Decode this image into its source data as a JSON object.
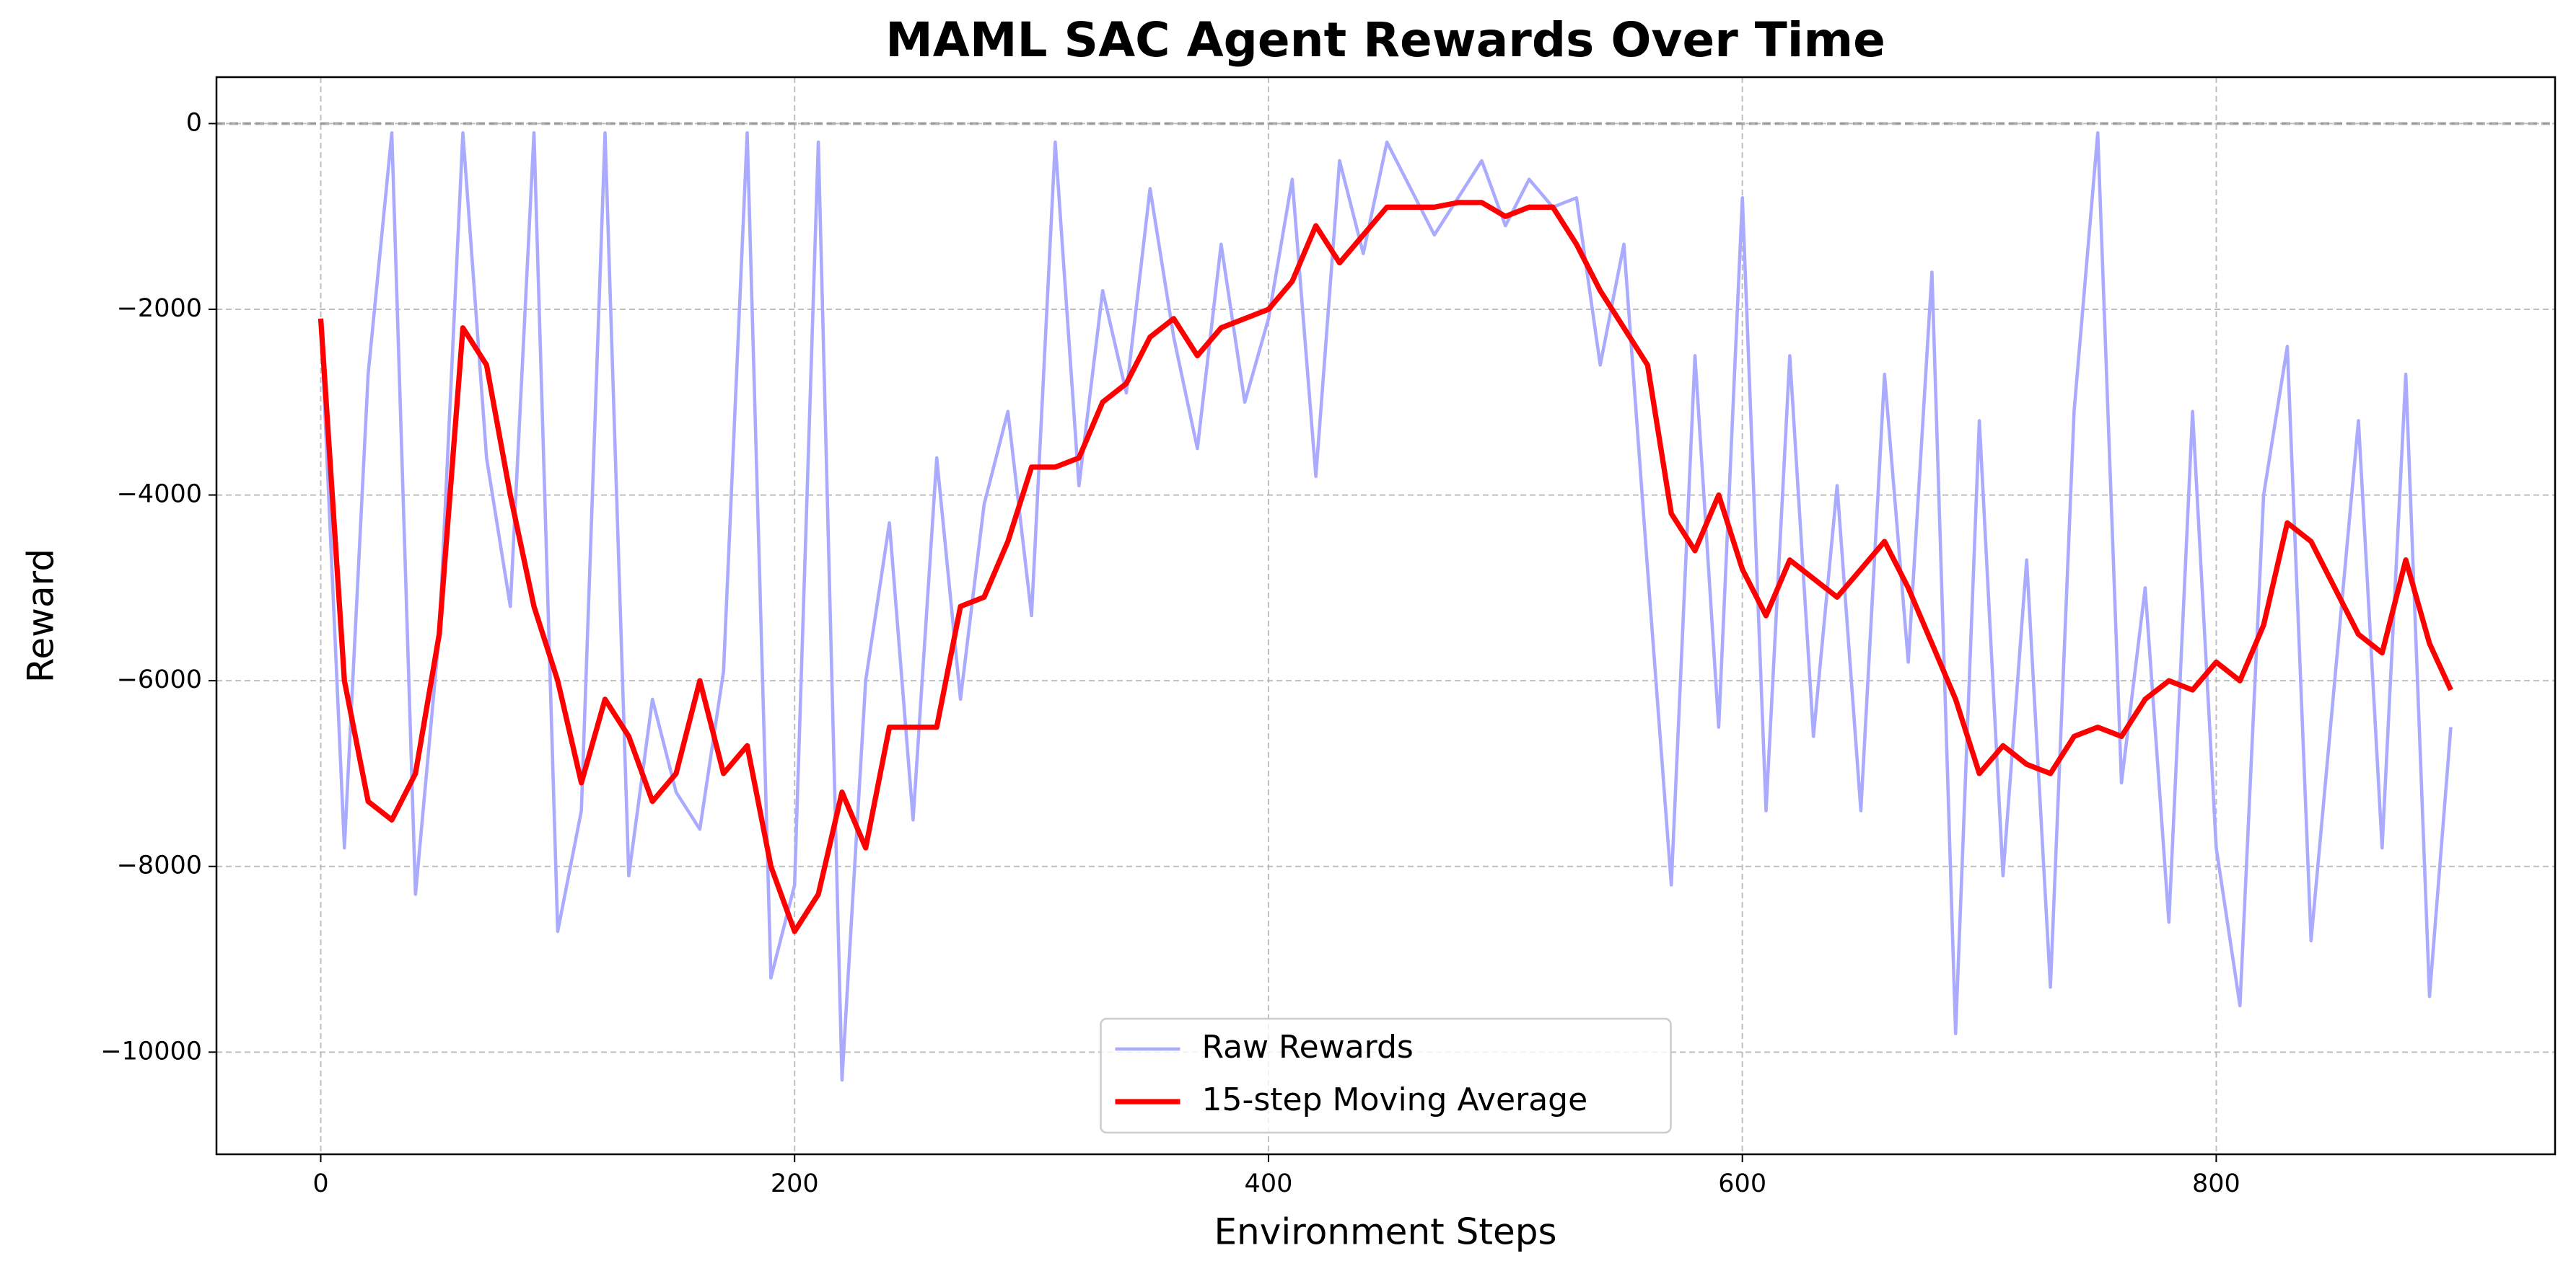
{
  "chart_data": {
    "type": "line",
    "title": "MAML SAC Agent Rewards Over Time",
    "x_label": "Environment Steps",
    "y_label": "Reward",
    "x": [
      0,
      10,
      20,
      30,
      40,
      50,
      60,
      70,
      80,
      90,
      100,
      110,
      120,
      130,
      140,
      150,
      160,
      170,
      180,
      190,
      200,
      210,
      220,
      230,
      240,
      250,
      260,
      270,
      280,
      290,
      300,
      310,
      320,
      330,
      340,
      350,
      360,
      370,
      380,
      390,
      400,
      410,
      420,
      430,
      440,
      450,
      460,
      470,
      480,
      490,
      500,
      510,
      520,
      530,
      540,
      550,
      560,
      570,
      580,
      590,
      600,
      610,
      620,
      630,
      640,
      650,
      660,
      670,
      680,
      690,
      700,
      710,
      720,
      730,
      740,
      750,
      760,
      770,
      780,
      790,
      800,
      810,
      820,
      830,
      840,
      850,
      860,
      870,
      880,
      890,
      899
    ],
    "series": [
      {
        "name": "Raw Rewards",
        "color": "#aaaaff",
        "width": 2,
        "values": [
          -2100,
          -7800,
          -2700,
          -100,
          -8300,
          -5500,
          -100,
          -3600,
          -5200,
          -100,
          -8700,
          -7400,
          -100,
          -8100,
          -6200,
          -7200,
          -7600,
          -5900,
          -100,
          -9200,
          -8200,
          -200,
          -10300,
          -6000,
          -4300,
          -7500,
          -3600,
          -6200,
          -4100,
          -3100,
          -5300,
          -200,
          -3900,
          -1800,
          -2900,
          -700,
          -2300,
          -3500,
          -1300,
          -3000,
          -2100,
          -600,
          -3800,
          -400,
          -1400,
          -200,
          -700,
          -1200,
          -800,
          -400,
          -1100,
          -600,
          -900,
          -800,
          -2600,
          -1300,
          -4800,
          -8200,
          -2500,
          -6500,
          -800,
          -7400,
          -2500,
          -6600,
          -3900,
          -7400,
          -2700,
          -5800,
          -1600,
          -9800,
          -3200,
          -8100,
          -4700,
          -9300,
          -3100,
          -100,
          -7100,
          -5000,
          -8600,
          -3100,
          -7800,
          -9500,
          -4000,
          -2400,
          -8800,
          -6000,
          -3200,
          -7800,
          -2700,
          -9400,
          -6500
        ]
      },
      {
        "name": "15-step Moving Average",
        "color": "#ff0000",
        "width": 3.2,
        "values": [
          -2100,
          -6000,
          -7300,
          -7500,
          -7000,
          -5500,
          -2200,
          -2600,
          -4000,
          -5200,
          -6000,
          -7100,
          -6200,
          -6600,
          -7300,
          -7000,
          -6000,
          -7000,
          -6700,
          -8000,
          -8700,
          -8300,
          -7200,
          -7800,
          -6500,
          -6500,
          -6500,
          -5200,
          -5100,
          -4500,
          -3700,
          -3700,
          -3600,
          -3000,
          -2800,
          -2300,
          -2100,
          -2500,
          -2200,
          -2100,
          -2000,
          -1700,
          -1100,
          -1500,
          -1200,
          -900,
          -900,
          -900,
          -850,
          -850,
          -1000,
          -900,
          -900,
          -1300,
          -1800,
          -2200,
          -2600,
          -4200,
          -4600,
          -4000,
          -4800,
          -5300,
          -4700,
          -4900,
          -5100,
          -4800,
          -4500,
          -5000,
          -5600,
          -6200,
          -7000,
          -6700,
          -6900,
          -7000,
          -6600,
          -6500,
          -6600,
          -6200,
          -6000,
          -6100,
          -5800,
          -6000,
          -5400,
          -4300,
          -4500,
          -5000,
          -5500,
          -5700,
          -4700,
          -5600,
          -6100
        ]
      }
    ],
    "xlim": [
      -44,
      943
    ],
    "ylim": [
      -11100,
      500
    ],
    "xticks": [
      0,
      200,
      400,
      600,
      800
    ],
    "yticks": [
      0,
      {
        "value": -2000,
        "label": "−2000"
      },
      {
        "value": -4000,
        "label": "−4000"
      },
      {
        "value": -6000,
        "label": "−6000"
      },
      {
        "value": -8000,
        "label": "−8000"
      },
      {
        "value": -10000,
        "label": "−10000"
      }
    ],
    "hline": 0,
    "grid": true,
    "legend": "lower center"
  }
}
